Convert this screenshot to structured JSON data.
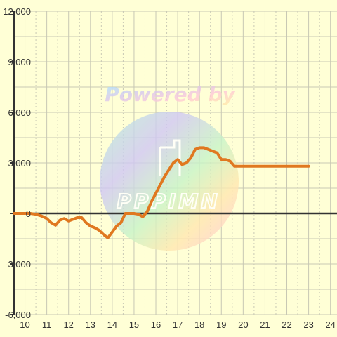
{
  "chart_data": {
    "type": "line",
    "title": "",
    "xlabel": "",
    "ylabel": "",
    "xlim": [
      9.5,
      24.3
    ],
    "ylim": [
      -6000,
      12000
    ],
    "x_ticks": [
      10,
      11,
      12,
      13,
      14,
      15,
      16,
      17,
      18,
      19,
      20,
      21,
      22,
      23,
      24
    ],
    "x_tick_labels": [
      "10",
      "11",
      "12",
      "13",
      "14",
      "15",
      "16",
      "17",
      "18",
      "19",
      "20",
      "21",
      "22",
      "23",
      "24"
    ],
    "y_ticks": [
      -6000,
      -3000,
      0,
      3000,
      6000,
      9000,
      12000
    ],
    "y_tick_labels": [
      "-6,000",
      "-3,000",
      "0",
      "3,000",
      "6,000",
      "9,000",
      "12,000"
    ],
    "grid": true,
    "legend": "none",
    "colors": {
      "background": "#ffffd6",
      "line": "#e07820",
      "axis": "#333333",
      "grid": "#c8c8b4"
    },
    "series": [
      {
        "x": [
          9.5,
          10.0,
          10.25,
          10.5,
          10.75,
          11.0,
          11.2,
          11.4,
          11.6,
          11.8,
          12.0,
          12.2,
          12.4,
          12.6,
          12.8,
          13.0,
          13.2,
          13.4,
          13.6,
          13.8,
          14.0,
          14.2,
          14.4,
          14.6,
          14.8,
          15.0,
          15.2,
          15.4,
          15.6,
          15.8,
          16.0,
          16.2,
          16.4,
          16.6,
          16.8,
          17.0,
          17.2,
          17.4,
          17.6,
          17.8,
          18.0,
          18.2,
          18.4,
          18.6,
          18.8,
          19.0,
          19.2,
          19.4,
          19.6,
          19.8,
          20.0,
          21.0,
          22.0,
          23.0
        ],
        "y": [
          0,
          0,
          0,
          -50,
          -150,
          -300,
          -550,
          -700,
          -400,
          -300,
          -450,
          -350,
          -250,
          -250,
          -550,
          -750,
          -850,
          -1000,
          -1250,
          -1450,
          -1100,
          -750,
          -550,
          0,
          0,
          0,
          -50,
          -200,
          100,
          700,
          1200,
          1700,
          2200,
          2600,
          3000,
          3200,
          2900,
          3000,
          3300,
          3800,
          3900,
          3900,
          3800,
          3700,
          3600,
          3200,
          3200,
          3100,
          2800,
          2800,
          2800,
          2800,
          2800,
          2800
        ]
      }
    ]
  },
  "watermark": {
    "line1": "Powered by",
    "line2": "PPPIMN"
  }
}
